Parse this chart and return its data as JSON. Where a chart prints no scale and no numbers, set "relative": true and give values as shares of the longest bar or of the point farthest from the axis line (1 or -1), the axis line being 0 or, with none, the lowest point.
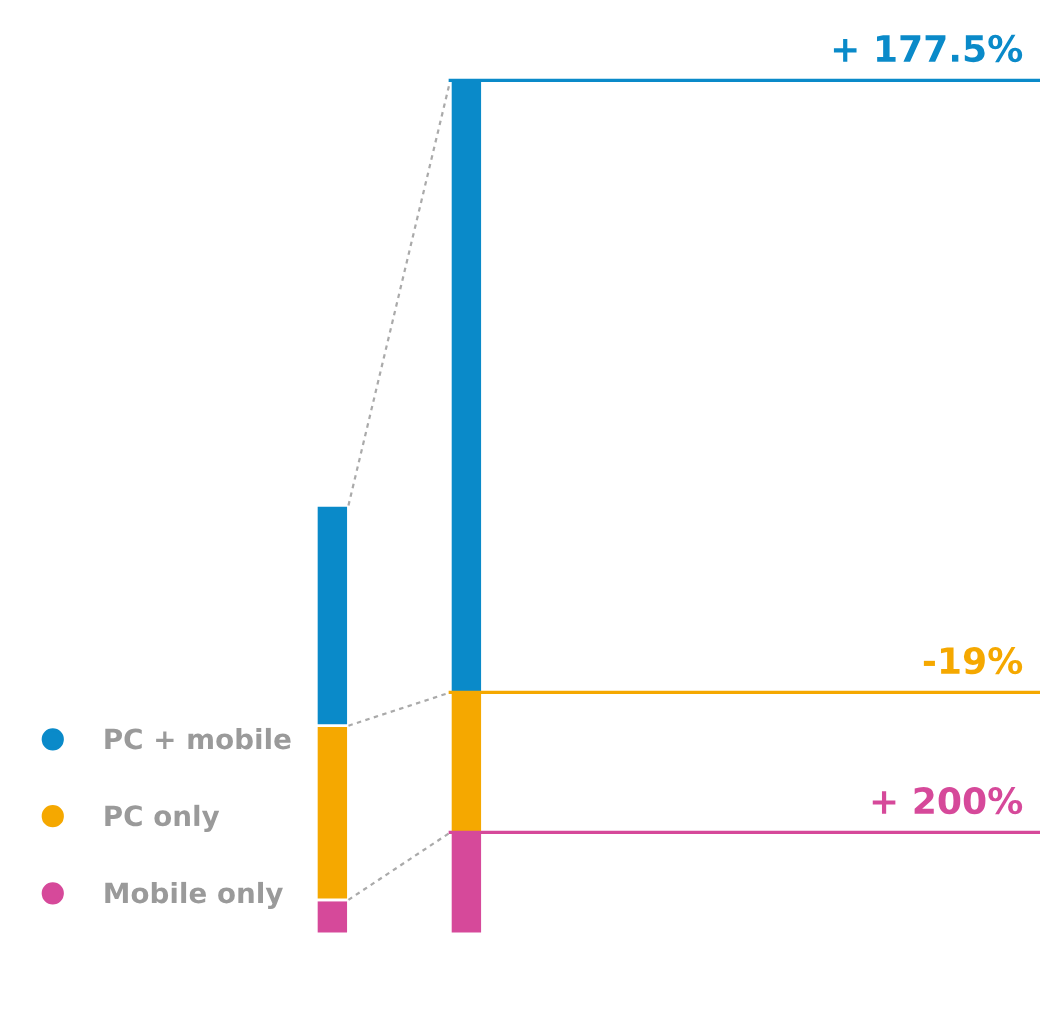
{
  "chart_data": {
    "type": "bar",
    "stacked": true,
    "relative": true,
    "categories": [
      null,
      null
    ],
    "series": [
      {
        "name": "Mobile only",
        "color": "#d6499a",
        "values": [
          0.04,
          0.119
        ]
      },
      {
        "name": "PC only",
        "color": "#f5a800",
        "values": [
          0.204,
          0.164
        ]
      },
      {
        "name": "PC + mobile",
        "color": "#0a8ac9",
        "values": [
          0.258,
          0.717
        ]
      }
    ],
    "ref_lines": [
      {
        "axis": "y",
        "value": 1.0,
        "color": "#0a8ac9"
      },
      {
        "axis": "y",
        "value": 0.283,
        "color": "#f5a800"
      },
      {
        "axis": "y",
        "value": 0.119,
        "color": "#d6499a"
      }
    ],
    "annotations": [
      {
        "text": "+ 177.5%",
        "y": 1.0
      },
      {
        "text": "-19%",
        "y": 0.283
      },
      {
        "text": "+ 200%",
        "y": 0.119
      }
    ],
    "legend": "bottom left",
    "marker": "circle"
  }
}
